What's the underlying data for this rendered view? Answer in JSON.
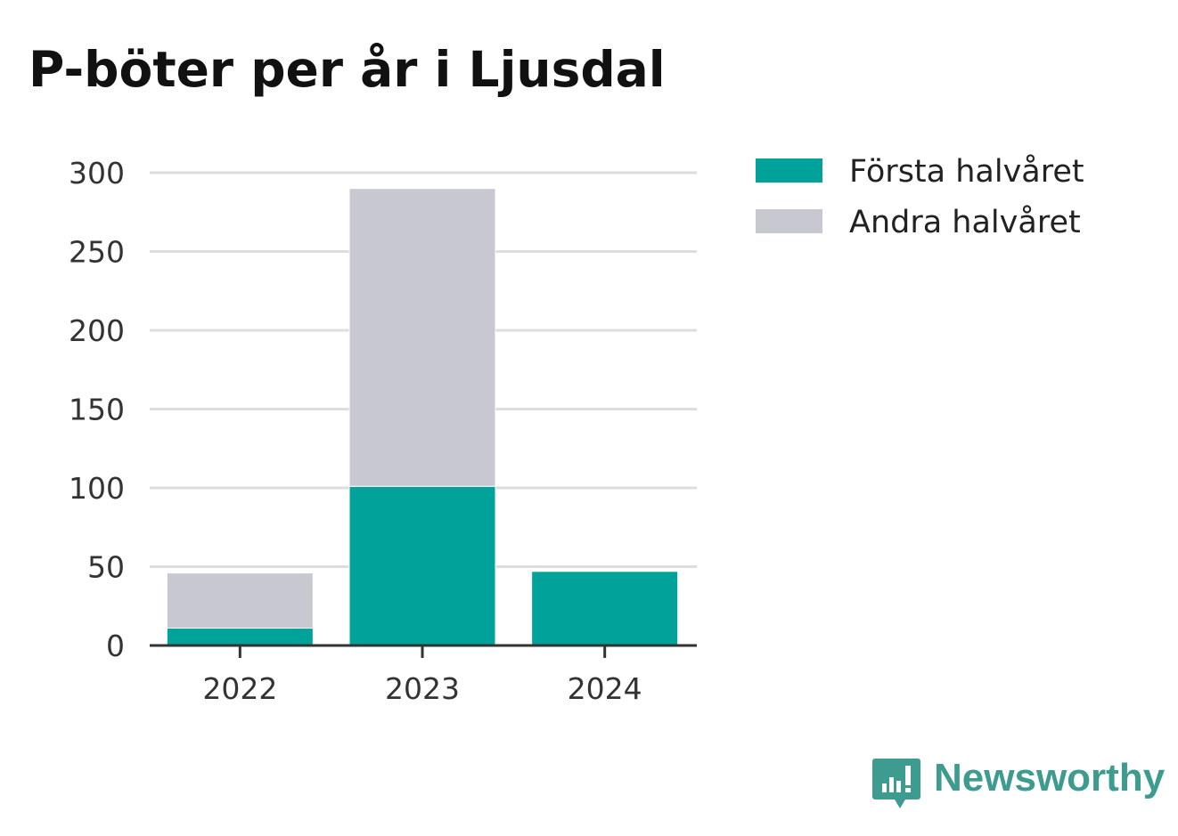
{
  "chart_data": {
    "type": "bar",
    "stacked": true,
    "title": "P-böter per år i Ljusdal",
    "xlabel": "",
    "ylabel": "",
    "categories": [
      "2022",
      "2023",
      "2024"
    ],
    "series": [
      {
        "name": "Första halvåret",
        "color": "#00a29a",
        "values": [
          11,
          101,
          47
        ]
      },
      {
        "name": "Andra halvåret",
        "color": "#c8c8d0",
        "values": [
          35,
          189,
          0
        ]
      }
    ],
    "ylim": [
      0,
      300
    ],
    "yticks": [
      0,
      50,
      100,
      150,
      200,
      250,
      300
    ],
    "grid": true,
    "legend": "top-right"
  },
  "brand": {
    "name": "Newsworthy",
    "color": "#3d9b90",
    "icon": "newsworthy-logo-icon"
  }
}
